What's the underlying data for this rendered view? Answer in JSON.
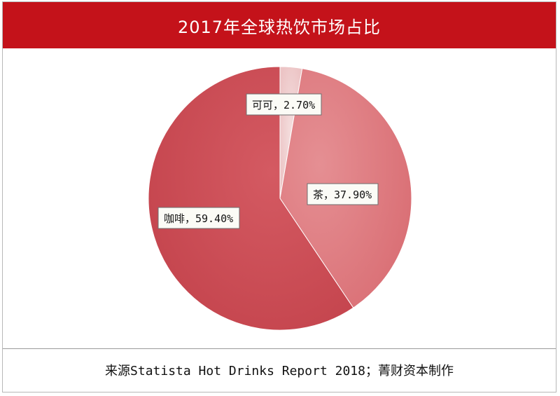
{
  "title": "2017年全球热饮市场占比",
  "source": "来源Statista Hot Drinks Report 2018；菁财资本制作",
  "chart_data": {
    "type": "pie",
    "title": "2017年全球热饮市场占比",
    "start": "12 o'clock",
    "direction": "clockwise",
    "slices": [
      {
        "name": "可可",
        "value": 2.7,
        "label": "可可，2.70%",
        "color": "#efcdcd"
      },
      {
        "name": "茶",
        "value": 37.9,
        "label": "茶，37.90%",
        "color": "#e07d82"
      },
      {
        "name": "咖啡",
        "value": 59.4,
        "label": "咖啡，59.40%",
        "color": "#cf4d55"
      }
    ]
  }
}
